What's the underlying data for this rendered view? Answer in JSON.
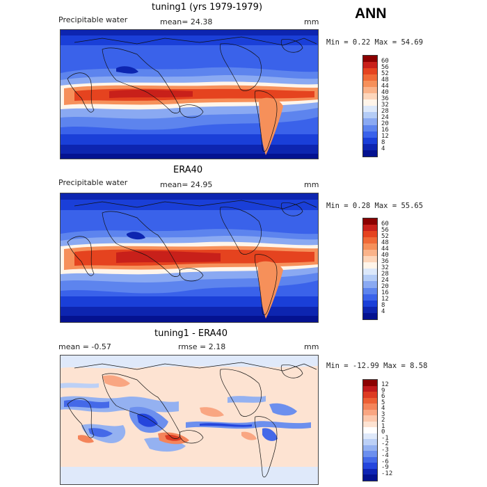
{
  "season": "ANN",
  "chart_data": [
    {
      "type": "heatmap",
      "title": "tuning1 (yrs 1979-1979)",
      "variable": "Precipitable water",
      "stat_left": "mean=  24.38",
      "units": "mm",
      "minmax": "Min =   0.22 Max =  54.69",
      "colorbar_ticks": [
        "60",
        "56",
        "52",
        "48",
        "44",
        "40",
        "36",
        "32",
        "28",
        "24",
        "20",
        "16",
        "12",
        "8",
        "4"
      ],
      "colors": [
        "#8b0000",
        "#c8201a",
        "#e5431f",
        "#f06a37",
        "#f6905a",
        "#fab38a",
        "#fdd6bb",
        "#fff5ea",
        "#dce8fa",
        "#b4ccf6",
        "#8aa9f2",
        "#5d84ee",
        "#3a62ea",
        "#1a3fd8",
        "#0d25b0",
        "#041290"
      ]
    },
    {
      "type": "heatmap",
      "title": "ERA40",
      "variable": "Precipitable water",
      "stat_left": "mean=  24.95",
      "units": "mm",
      "minmax": "Min =   0.28 Max =  55.65",
      "colorbar_ticks": [
        "60",
        "56",
        "52",
        "48",
        "44",
        "40",
        "36",
        "32",
        "28",
        "24",
        "20",
        "16",
        "12",
        "8",
        "4"
      ],
      "colors": [
        "#8b0000",
        "#c8201a",
        "#e5431f",
        "#f06a37",
        "#f6905a",
        "#fab38a",
        "#fdd6bb",
        "#fff5ea",
        "#dce8fa",
        "#b4ccf6",
        "#8aa9f2",
        "#5d84ee",
        "#3a62ea",
        "#1a3fd8",
        "#0d25b0",
        "#041290"
      ]
    },
    {
      "type": "heatmap",
      "title": "tuning1 - ERA40",
      "stat_left": "mean =   -0.57",
      "stat_mid": "rmse =    2.18",
      "units": "mm",
      "minmax": "Min = -12.99 Max =   8.58",
      "colorbar_ticks": [
        "12",
        "9",
        "6",
        "5",
        "4",
        "3",
        "2",
        "1",
        "0",
        "-1",
        "-2",
        "-3",
        "-4",
        "-6",
        "-9",
        "-12"
      ],
      "colors": [
        "#8b0000",
        "#c0181a",
        "#dd3a22",
        "#ec5f34",
        "#f4845a",
        "#f9a682",
        "#fcc8ad",
        "#fde3d2",
        "#ffffff",
        "#dfe9fa",
        "#bcd0f6",
        "#94b1f1",
        "#6c8fee",
        "#4469e8",
        "#2445dc",
        "#0e24b4",
        "#041290"
      ]
    }
  ]
}
